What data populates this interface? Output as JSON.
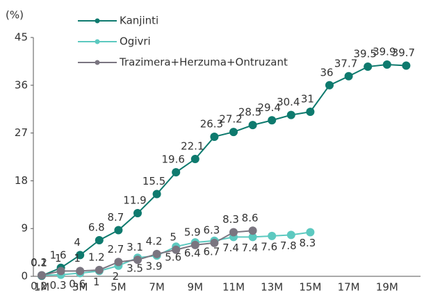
{
  "chart_data": {
    "type": "line",
    "y_unit": "(%)",
    "categories": [
      "1M",
      "2M",
      "3M",
      "4M",
      "5M",
      "6M",
      "7M",
      "8M",
      "9M",
      "10M",
      "11M",
      "12M",
      "13M",
      "14M",
      "15M",
      "16M",
      "17M",
      "18M",
      "19M",
      "20M"
    ],
    "xtick_labels": [
      "1M",
      "3M",
      "5M",
      "7M",
      "9M",
      "11M",
      "13M",
      "15M",
      "17M",
      "19M"
    ],
    "ylim": [
      0,
      45
    ],
    "yticks": [
      0,
      9,
      18,
      27,
      36,
      45
    ],
    "series": [
      {
        "name": "Kanjinti",
        "color": "#0e7a6e",
        "label_pos": "above",
        "values": [
          0.1,
          1.6,
          4.0,
          6.8,
          8.7,
          11.9,
          15.5,
          19.6,
          22.1,
          26.3,
          27.2,
          28.5,
          29.4,
          30.4,
          31.0,
          36.0,
          37.7,
          39.5,
          39.9,
          39.7
        ]
      },
      {
        "name": "Ogivri",
        "color": "#5cc9c0",
        "label_pos": "below",
        "values": [
          0.2,
          0.3,
          0.6,
          1.0,
          2.0,
          3.5,
          3.9,
          5.6,
          6.4,
          6.7,
          7.4,
          7.4,
          7.6,
          7.8,
          8.3,
          null,
          null,
          null,
          null,
          null
        ]
      },
      {
        "name": "Trazimera+Herzuma+Ontruzant",
        "color": "#7a7580",
        "label_pos": "above",
        "values": [
          0.2,
          1.0,
          1.0,
          1.2,
          2.7,
          3.1,
          4.2,
          5.0,
          5.9,
          6.3,
          8.3,
          8.6,
          null,
          null,
          null,
          null,
          null,
          null,
          null,
          null
        ]
      }
    ]
  }
}
